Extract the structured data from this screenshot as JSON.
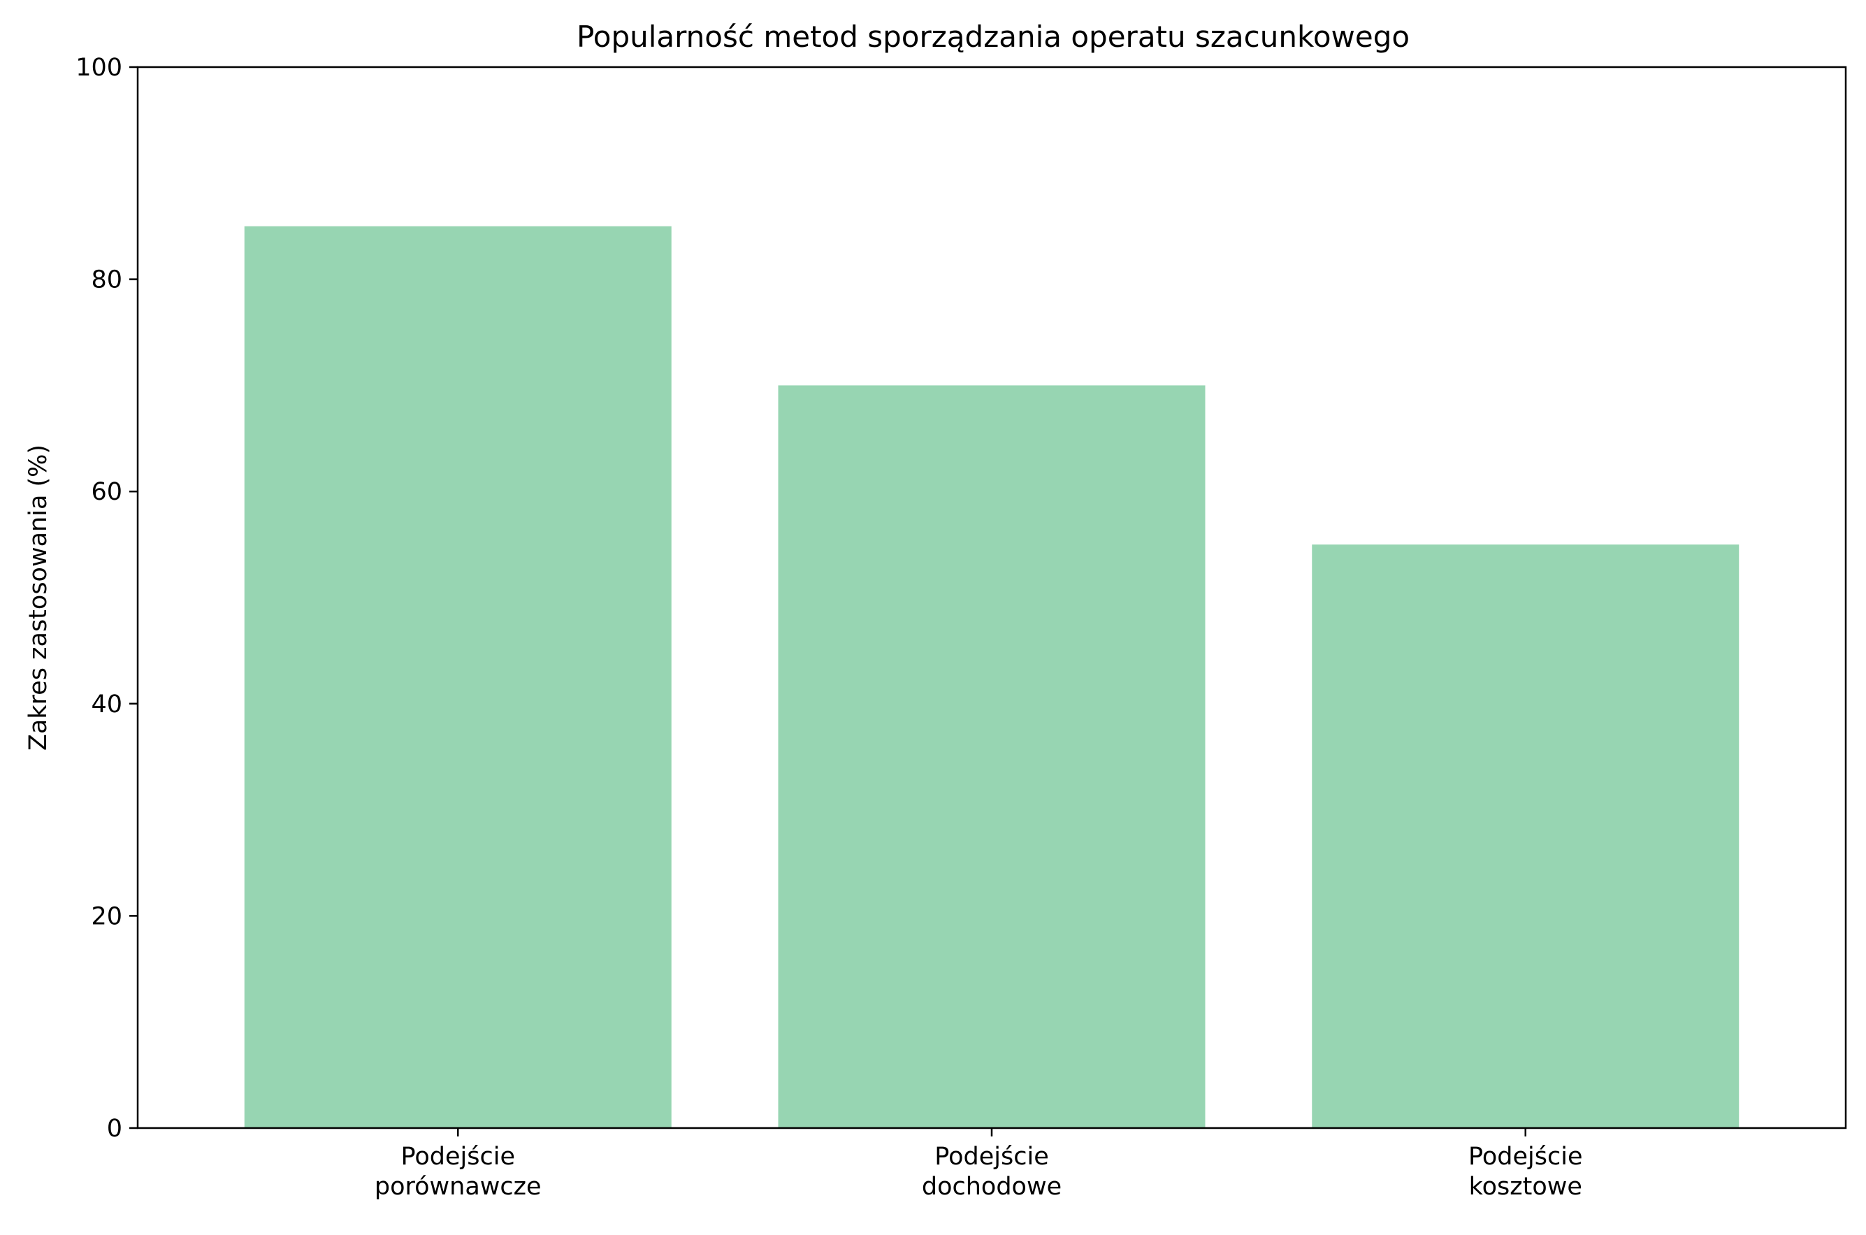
{
  "chart_data": {
    "type": "bar",
    "title": "Popularność metod sporządzania operatu szacunkowego",
    "xlabel": "",
    "ylabel": "Zakres zastosowania (%)",
    "categories": [
      [
        "Podejście",
        "porównawcze"
      ],
      [
        "Podejście",
        "dochodowe"
      ],
      [
        "Podejście",
        "kosztowe"
      ]
    ],
    "values": [
      85,
      70,
      55
    ],
    "ylim": [
      0,
      100
    ],
    "yticks": [
      0,
      20,
      40,
      60,
      80,
      100
    ],
    "bar_color": "#97d5b2",
    "grid": false,
    "legend": "none"
  }
}
